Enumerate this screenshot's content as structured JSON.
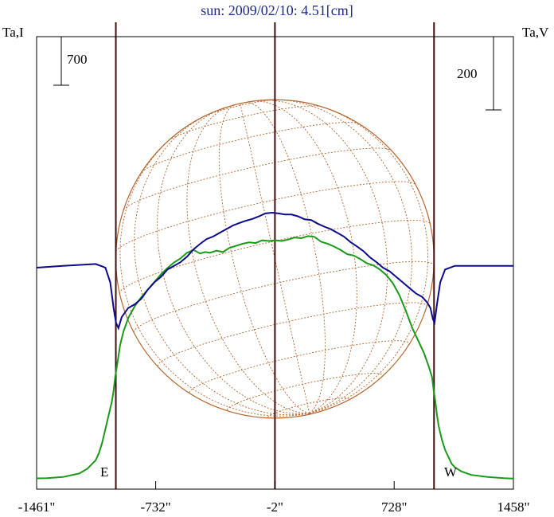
{
  "chart_data": {
    "type": "line",
    "title": "sun: 2009/02/10: 4.51[cm]",
    "ylabel_left": "Ta,I",
    "ylabel_right": "Ta,V",
    "scale_left_label": "700",
    "scale_left_value": 700,
    "scale_right_label": "200",
    "scale_right_value": 200,
    "limb_labels": {
      "east": "E",
      "west": "W"
    },
    "x_ticks": [
      {
        "value": -1461,
        "label": "-1461\""
      },
      {
        "value": -732,
        "label": "-732\""
      },
      {
        "value": -2,
        "label": "-2\""
      },
      {
        "value": 728,
        "label": "728\""
      },
      {
        "value": 1458,
        "label": "1458\""
      }
    ],
    "xlim": [
      -1461,
      1458
    ],
    "vertical_lines": [
      -976,
      -2,
      972
    ],
    "solar_disk": {
      "center_x": -2,
      "radius": 974
    },
    "colors": {
      "intensity": "#1a9a1a",
      "polarization": "#0b0b8c",
      "disk": "#b5652d",
      "vline": "#3a1010",
      "frame": "#000000"
    },
    "series": [
      {
        "name": "I",
        "color": "#1a9a1a",
        "axis": "left",
        "x": [
          -1461,
          -1400,
          -1300,
          -1200,
          -1150,
          -1100,
          -1080,
          -1060,
          -1040,
          -1020,
          -1000,
          -990,
          -980,
          -970,
          -960,
          -950,
          -930,
          -900,
          -860,
          -820,
          -780,
          -740,
          -700,
          -660,
          -620,
          -580,
          -540,
          -500,
          -460,
          -430,
          -400,
          -360,
          -320,
          -280,
          -240,
          -200,
          -160,
          -120,
          -80,
          -40,
          0,
          40,
          80,
          120,
          160,
          200,
          240,
          280,
          320,
          360,
          400,
          440,
          480,
          520,
          560,
          600,
          640,
          680,
          720,
          760,
          800,
          840,
          880,
          910,
          940,
          960,
          970,
          980,
          990,
          1000,
          1020,
          1040,
          1060,
          1080,
          1100,
          1140,
          1200,
          1300,
          1400,
          1458
        ],
        "y": [
          40,
          42,
          60,
          110,
          180,
          300,
          400,
          550,
          750,
          950,
          1150,
          1300,
          1500,
          1650,
          1800,
          1960,
          2150,
          2350,
          2520,
          2650,
          2760,
          2870,
          2980,
          3070,
          3150,
          3210,
          3290,
          3330,
          3280,
          3300,
          3290,
          3320,
          3300,
          3360,
          3390,
          3420,
          3440,
          3430,
          3470,
          3460,
          3470,
          3460,
          3480,
          3510,
          3500,
          3530,
          3520,
          3450,
          3420,
          3380,
          3330,
          3270,
          3250,
          3200,
          3140,
          3110,
          3050,
          2970,
          2850,
          2680,
          2450,
          2200,
          2000,
          1850,
          1650,
          1500,
          1300,
          1150,
          950,
          800,
          600,
          450,
          350,
          250,
          200,
          140,
          90,
          60,
          42,
          38
        ]
      },
      {
        "name": "V",
        "color": "#0b0b8c",
        "axis": "right",
        "x": [
          -1461,
          -1300,
          -1100,
          -1040,
          -1010,
          -990,
          -975,
          -960,
          -940,
          -900,
          -860,
          -820,
          -780,
          -740,
          -700,
          -660,
          -620,
          -580,
          -540,
          -500,
          -460,
          -420,
          -380,
          -340,
          -300,
          -260,
          -220,
          -180,
          -140,
          -100,
          -60,
          -20,
          20,
          60,
          100,
          140,
          180,
          220,
          260,
          300,
          340,
          380,
          420,
          460,
          500,
          540,
          580,
          620,
          660,
          700,
          740,
          780,
          820,
          860,
          900,
          930,
          950,
          965,
          975,
          990,
          1010,
          1040,
          1100,
          1300,
          1458
        ],
        "y": [
          900,
          905,
          910,
          900,
          860,
          790,
          750,
          735,
          765,
          790,
          800,
          815,
          840,
          860,
          875,
          895,
          905,
          915,
          930,
          950,
          965,
          978,
          985,
          995,
          1005,
          1015,
          1022,
          1028,
          1033,
          1040,
          1048,
          1050,
          1048,
          1045,
          1045,
          1040,
          1032,
          1030,
          1020,
          1012,
          1005,
          995,
          985,
          970,
          958,
          945,
          928,
          915,
          900,
          890,
          875,
          860,
          845,
          830,
          820,
          805,
          790,
          760,
          750,
          800,
          860,
          895,
          905,
          905,
          905
        ]
      }
    ]
  }
}
